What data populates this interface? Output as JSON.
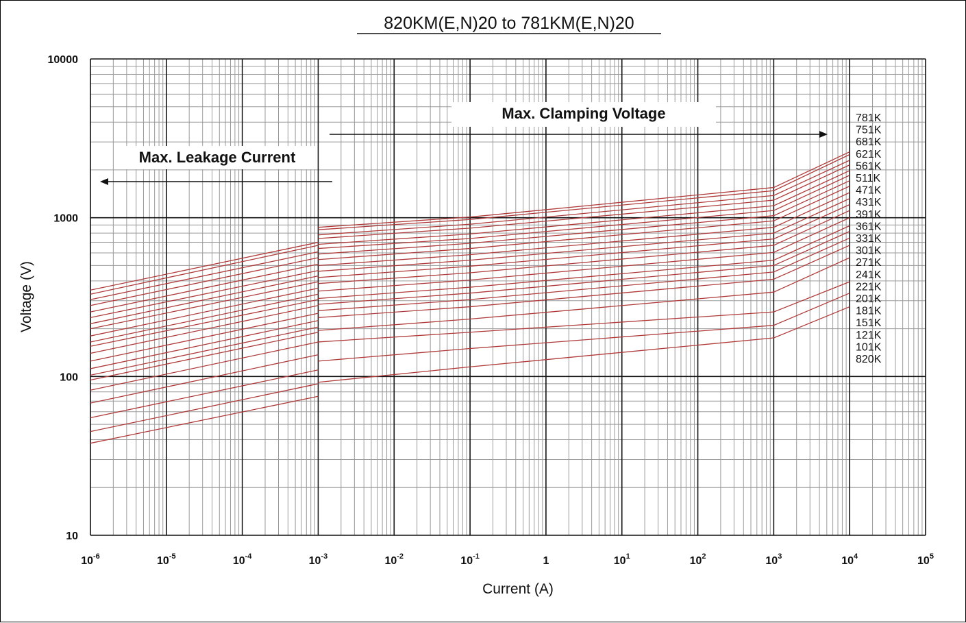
{
  "chart_data": {
    "type": "line",
    "title": "820KM(E,N)20  to 781KM(E,N)20",
    "xlabel": "Current (A)",
    "ylabel": "Voltage (V)",
    "x_scale": "log",
    "y_scale": "log",
    "xlim": [
      1e-06,
      100000
    ],
    "ylim": [
      10,
      10000
    ],
    "x_ticks": [
      {
        "base": "10",
        "exp": "-6"
      },
      {
        "base": "10",
        "exp": "-5"
      },
      {
        "base": "10",
        "exp": "-4"
      },
      {
        "base": "10",
        "exp": "-3"
      },
      {
        "base": "10",
        "exp": "-2"
      },
      {
        "base": "10",
        "exp": "-1"
      },
      {
        "base": "1",
        "exp": ""
      },
      {
        "base": "10",
        "exp": "1"
      },
      {
        "base": "10",
        "exp": "2"
      },
      {
        "base": "10",
        "exp": "3"
      },
      {
        "base": "10",
        "exp": "4"
      },
      {
        "base": "10",
        "exp": "5"
      }
    ],
    "y_ticks": [
      "10",
      "100",
      "1000",
      "10000"
    ],
    "grid": true,
    "line_color": "#b03a3a",
    "annotations": {
      "clamping": "Max.  Clamping  Voltage",
      "leakage": "Max. Leakage Current"
    },
    "leakage_range": {
      "current": [
        1e-06,
        0.001
      ]
    },
    "clamping_range": {
      "current": [
        0.001,
        10000
      ]
    },
    "series": [
      {
        "name": "781K",
        "leakage": [
          350,
          700
        ],
        "clamping": [
          870,
          1010,
          1550,
          2600
        ]
      },
      {
        "name": "751K",
        "leakage": [
          330,
          670
        ],
        "clamping": [
          840,
          975,
          1480,
          2500
        ]
      },
      {
        "name": "681K",
        "leakage": [
          305,
          610
        ],
        "clamping": [
          780,
          910,
          1380,
          2300
        ]
      },
      {
        "name": "621K",
        "leakage": [
          280,
          560
        ],
        "clamping": [
          740,
          860,
          1290,
          2150
        ]
      },
      {
        "name": "561K",
        "leakage": [
          255,
          510
        ],
        "clamping": [
          680,
          790,
          1190,
          1980
        ]
      },
      {
        "name": "511K",
        "leakage": [
          235,
          465
        ],
        "clamping": [
          640,
          740,
          1110,
          1850
        ]
      },
      {
        "name": "471K",
        "leakage": [
          215,
          430
        ],
        "clamping": [
          590,
          690,
          1030,
          1710
        ]
      },
      {
        "name": "431K",
        "leakage": [
          200,
          395
        ],
        "clamping": [
          545,
          640,
          955,
          1580
        ]
      },
      {
        "name": "391K",
        "leakage": [
          180,
          360
        ],
        "clamping": [
          500,
          585,
          870,
          1440
        ]
      },
      {
        "name": "361K",
        "leakage": [
          165,
          330
        ],
        "clamping": [
          460,
          540,
          800,
          1320
        ]
      },
      {
        "name": "331K",
        "leakage": [
          155,
          305
        ],
        "clamping": [
          420,
          495,
          735,
          1210
        ]
      },
      {
        "name": "301K",
        "leakage": [
          140,
          280
        ],
        "clamping": [
          385,
          450,
          670,
          1110
        ]
      },
      {
        "name": "271K",
        "leakage": [
          125,
          250
        ],
        "clamping": [
          345,
          405,
          605,
          1000
        ]
      },
      {
        "name": "241K",
        "leakage": [
          112,
          225
        ],
        "clamping": [
          310,
          365,
          540,
          890
        ]
      },
      {
        "name": "221K",
        "leakage": [
          102,
          205
        ],
        "clamping": [
          285,
          335,
          500,
          820
        ]
      },
      {
        "name": "201K",
        "leakage": [
          95,
          190
        ],
        "clamping": [
          260,
          305,
          455,
          745
        ]
      },
      {
        "name": "181K",
        "leakage": [
          82,
          165
        ],
        "clamping": [
          235,
          275,
          410,
          670
        ]
      },
      {
        "name": "151K",
        "leakage": [
          68,
          137
        ],
        "clamping": [
          195,
          230,
          340,
          560
        ]
      },
      {
        "name": "121K",
        "leakage": [
          55,
          110
        ],
        "clamping": [
          165,
          190,
          255,
          395
        ]
      },
      {
        "name": "101K",
        "leakage": [
          45,
          90
        ],
        "clamping": [
          125,
          150,
          210,
          335
        ]
      },
      {
        "name": "820K",
        "leakage": [
          38,
          75
        ],
        "clamping": [
          92,
          115,
          175,
          275
        ]
      }
    ]
  }
}
